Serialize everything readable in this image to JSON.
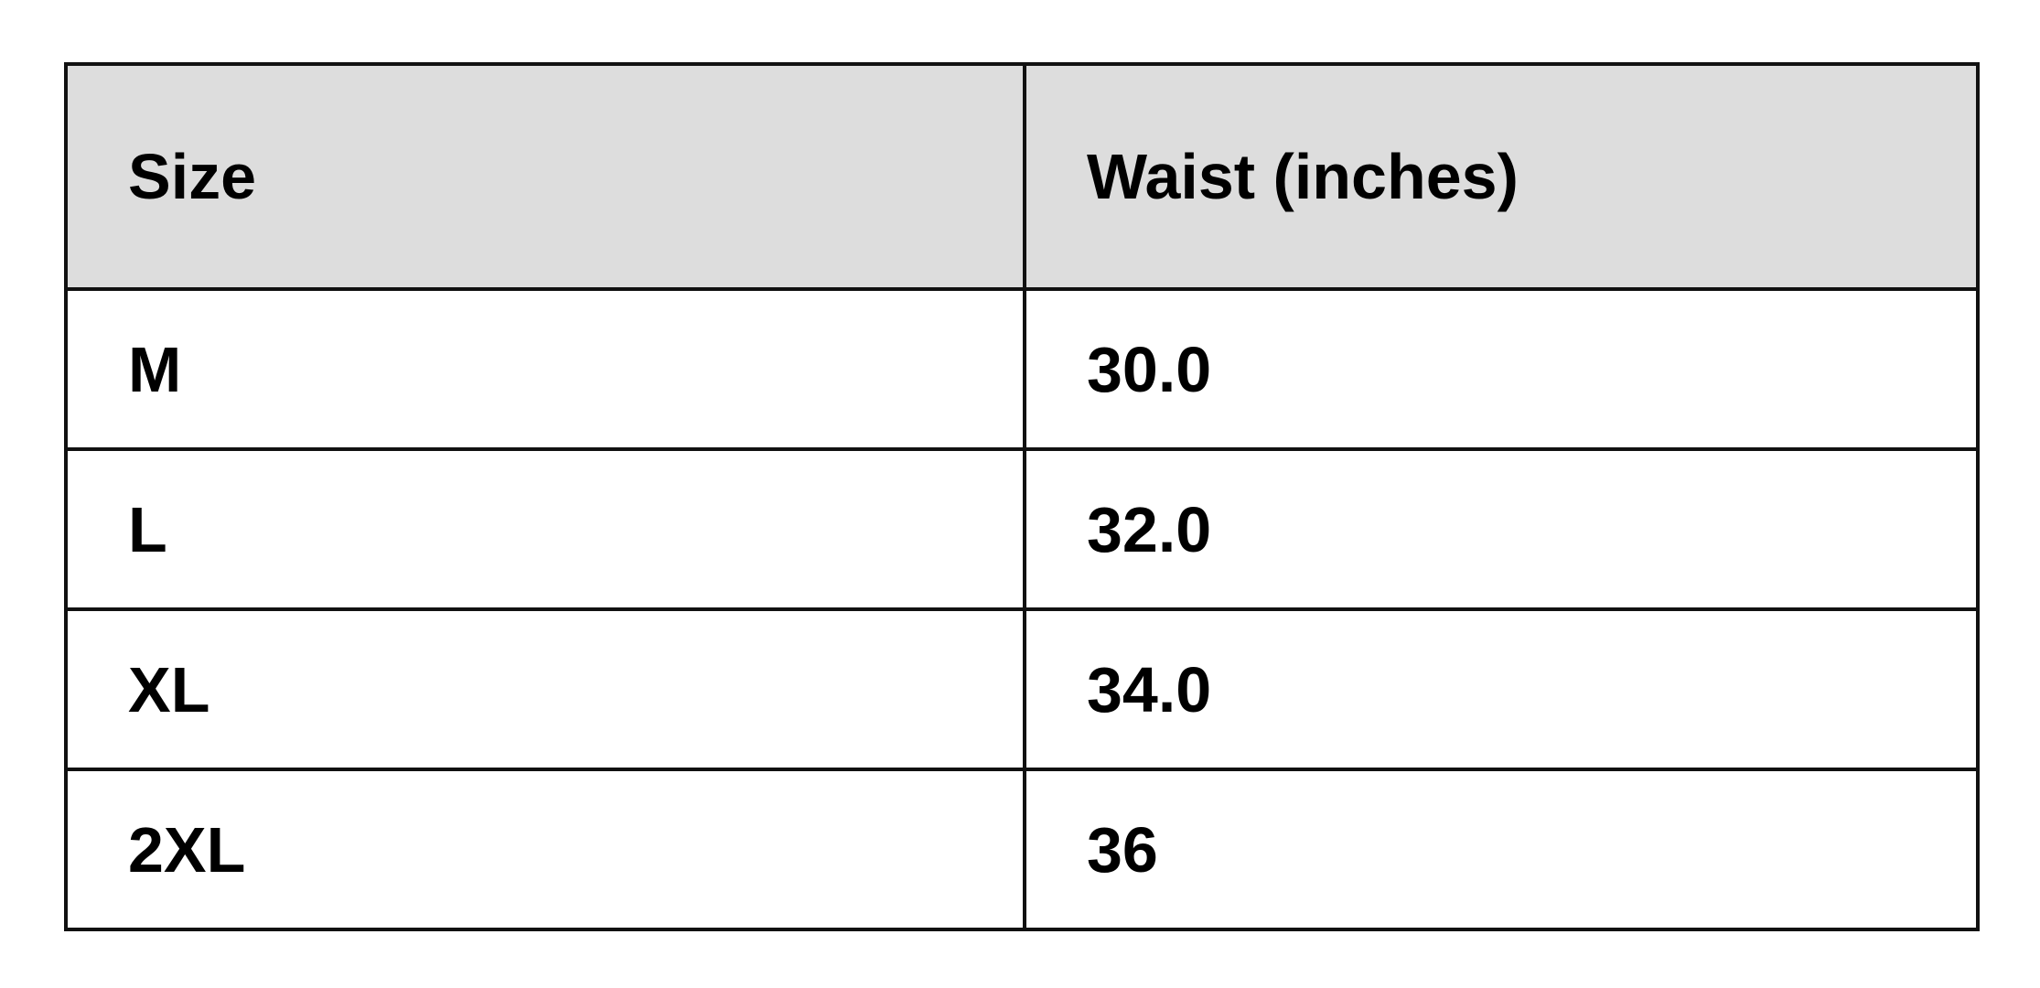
{
  "table": {
    "headers": [
      "Size",
      "Waist (inches)"
    ],
    "rows": [
      [
        "M",
        "30.0"
      ],
      [
        "L",
        "32.0"
      ],
      [
        "XL",
        "34.0"
      ],
      [
        "2XL",
        "36"
      ]
    ]
  },
  "colors": {
    "header_bg": "#dddddd",
    "border": "#111111"
  }
}
